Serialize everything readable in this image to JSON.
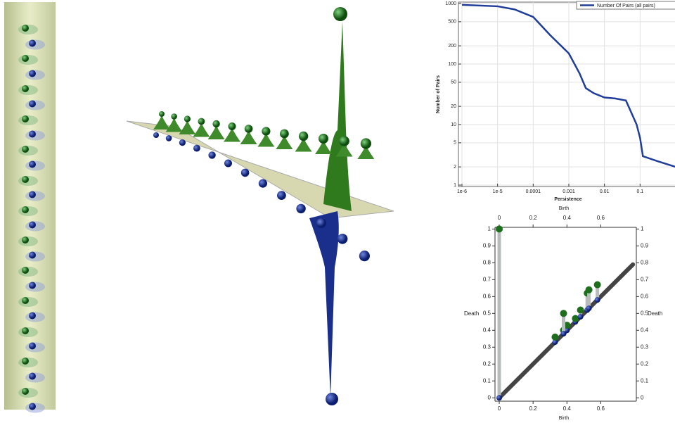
{
  "chart_data": [
    {
      "type": "line",
      "xlabel": "Persistence",
      "ylabel": "Number of Pairs",
      "x": [
        1e-06,
        1e-05,
        3e-05,
        0.0001,
        0.0003,
        0.001,
        0.002,
        0.003,
        0.005,
        0.01,
        0.02,
        0.04,
        0.08,
        0.1,
        0.12,
        0.3,
        1
      ],
      "series": [
        {
          "name": "Number Of Pairs (all pairs)",
          "color": "#1f3d99",
          "values": [
            950,
            900,
            800,
            600,
            300,
            150,
            70,
            40,
            33,
            28,
            27,
            25,
            10,
            6,
            3,
            2.5,
            2
          ]
        }
      ],
      "xlim": [
        1e-06,
        1
      ],
      "ylim": [
        1,
        1000
      ],
      "log_x": true,
      "log_y": true,
      "grid": true,
      "xticks": [
        {
          "value": 1e-06,
          "label": "1e-6"
        },
        {
          "value": 1e-05,
          "label": "1e-5"
        },
        0.0001,
        0.001,
        0.01,
        0.1
      ],
      "yticks": [
        1,
        2,
        5,
        10,
        20,
        50,
        100,
        200,
        500,
        1000
      ],
      "legend": "top-right"
    },
    {
      "type": "scatter",
      "xlabel": "Birth",
      "ylabel": "Death",
      "x": [
        0,
        0.33,
        0.38,
        0.4,
        0.45,
        0.38,
        0.48,
        0.52,
        0.53,
        0.58
      ],
      "values": [
        1,
        0.36,
        0.4,
        0.43,
        0.47,
        0.5,
        0.52,
        0.62,
        0.64,
        0.67
      ],
      "color": "#1d6e1d",
      "xlim": [
        -0.025,
        0.81
      ],
      "ylim": [
        -0.02,
        1.01
      ],
      "xticks": [
        0,
        0.2,
        0.4,
        0.6
      ],
      "yticks": [
        0,
        0.1,
        0.2,
        0.3,
        0.4,
        0.5,
        0.6,
        0.7,
        0.8,
        0.9,
        1
      ]
    }
  ]
}
